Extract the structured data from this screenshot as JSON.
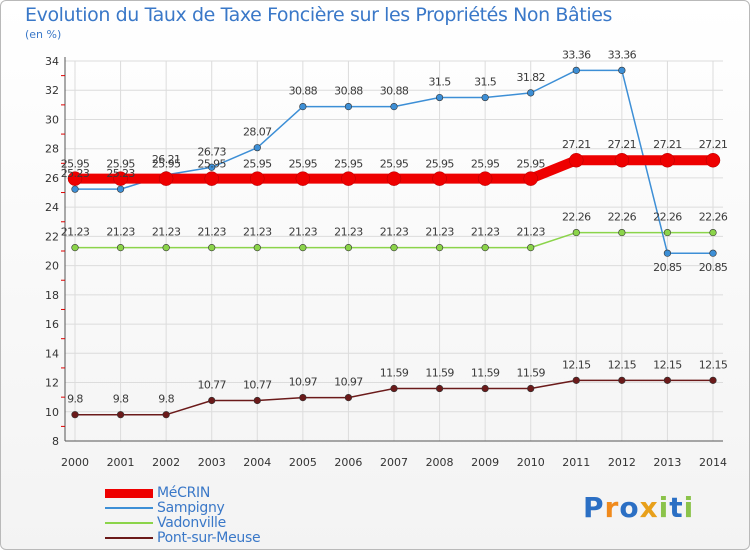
{
  "header": {
    "title": "Evolution du Taux de Taxe Foncière sur les Propriétés Non Bâties",
    "subtitle": "(en %)"
  },
  "chart_data": {
    "type": "line",
    "title": "Evolution du Taux de Taxe Foncière sur les Propriétés Non Bâties",
    "ylabel": "(en %)",
    "xlabel": "",
    "ylim": [
      8,
      34
    ],
    "ytick_step": 2,
    "grid": true,
    "categories": [
      "2000",
      "2001",
      "2002",
      "2003",
      "2004",
      "2005",
      "2006",
      "2007",
      "2008",
      "2009",
      "2010",
      "2011",
      "2012",
      "2013",
      "2014"
    ],
    "series": [
      {
        "name": "MéCRIN",
        "color": "#ee0000",
        "values": [
          25.95,
          25.95,
          25.95,
          25.95,
          25.95,
          25.95,
          25.95,
          25.95,
          25.95,
          25.95,
          25.95,
          27.21,
          27.21,
          27.21,
          27.21
        ]
      },
      {
        "name": "Sampigny",
        "color": "#3d8fd6",
        "values": [
          25.23,
          25.23,
          26.21,
          26.73,
          28.07,
          30.88,
          30.88,
          30.88,
          31.5,
          31.5,
          31.82,
          33.36,
          33.36,
          20.85,
          20.85
        ]
      },
      {
        "name": "Vadonville",
        "color": "#8bd44a",
        "values": [
          21.23,
          21.23,
          21.23,
          21.23,
          21.23,
          21.23,
          21.23,
          21.23,
          21.23,
          21.23,
          21.23,
          22.26,
          22.26,
          22.26,
          22.26
        ]
      },
      {
        "name": "Pont-sur-Meuse",
        "color": "#6b1a1a",
        "values": [
          9.8,
          9.8,
          9.8,
          10.77,
          10.77,
          10.97,
          10.97,
          11.59,
          11.59,
          11.59,
          11.59,
          12.15,
          12.15,
          12.15,
          12.15
        ]
      }
    ]
  },
  "legend": {
    "items": [
      {
        "label": "MéCRIN",
        "color": "#ee0000"
      },
      {
        "label": "Sampigny",
        "color": "#3d8fd6"
      },
      {
        "label": "Vadonville",
        "color": "#8bd44a"
      },
      {
        "label": "Pont-sur-Meuse",
        "color": "#6b1a1a"
      }
    ]
  },
  "logo": {
    "text": "Proxiti",
    "letters": [
      "P",
      "r",
      "o",
      "x",
      "i",
      "t",
      "i"
    ],
    "colors": [
      "#2b6fc4",
      "#f08a1c",
      "#2b6fc4",
      "#e8a01a",
      "#8bc34a",
      "#2b6fc4",
      "#8bc34a"
    ]
  }
}
